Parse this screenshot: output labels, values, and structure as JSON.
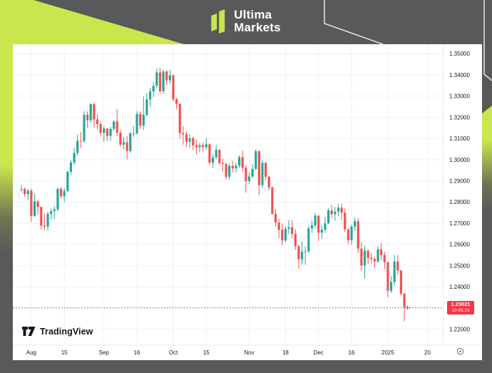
{
  "brand": {
    "line1": "Ultima",
    "line2": "Markets"
  },
  "colors": {
    "frame_bg": "#58595b",
    "accent_lime": "#c9e64d",
    "card_bg": "#ffffff",
    "candle_up": "#26a69a",
    "candle_down": "#ef5350",
    "price_line": "#f23645",
    "grid": "#eef1f6",
    "axis_text": "#131722",
    "attribution_text": "#131722",
    "gear_icon": "#787b86"
  },
  "badge": {
    "price": "1.23021",
    "countdown": "19:45:23"
  },
  "attribution": {
    "label": "TradingView"
  },
  "y_axis_labels": [
    "1.35000",
    "1.34000",
    "1.33000",
    "1.32000",
    "1.31000",
    "1.30000",
    "1.29000",
    "1.28000",
    "1.27000",
    "1.26000",
    "1.25000",
    "1.24000",
    "1.23000",
    "1.22000"
  ],
  "chart_data": {
    "type": "candlestick",
    "title": "",
    "xlabel": "",
    "ylabel": "",
    "legend": false,
    "grid": true,
    "y_range_visible": [
      1.2125,
      1.3545
    ],
    "y_gridline_step": 0.01,
    "price_line_value": 1.23021,
    "x_ticks": [
      {
        "index": 3,
        "label": "Aug"
      },
      {
        "index": 13,
        "label": "15"
      },
      {
        "index": 25,
        "label": "Sep"
      },
      {
        "index": 35,
        "label": "16"
      },
      {
        "index": 46,
        "label": "Oct"
      },
      {
        "index": 56,
        "label": "15"
      },
      {
        "index": 69,
        "label": "Nov"
      },
      {
        "index": 80,
        "label": "18"
      },
      {
        "index": 90,
        "label": "Dec"
      },
      {
        "index": 100,
        "label": "16"
      },
      {
        "index": 111,
        "label": "2025"
      },
      {
        "index": 123,
        "label": "20"
      }
    ],
    "ohlc": [
      [
        1.2858,
        1.288,
        1.2845,
        1.2862
      ],
      [
        1.2862,
        1.287,
        1.2825,
        1.2838
      ],
      [
        1.2838,
        1.2862,
        1.2808,
        1.2854
      ],
      [
        1.2854,
        1.2864,
        1.2706,
        1.2735
      ],
      [
        1.2735,
        1.284,
        1.273,
        1.2803
      ],
      [
        1.2803,
        1.281,
        1.274,
        1.2777
      ],
      [
        1.2777,
        1.278,
        1.2672,
        1.269
      ],
      [
        1.269,
        1.2745,
        1.2667,
        1.2685
      ],
      [
        1.2685,
        1.2755,
        1.2665,
        1.2745
      ],
      [
        1.2745,
        1.277,
        1.2718,
        1.2758
      ],
      [
        1.2758,
        1.278,
        1.272,
        1.2766
      ],
      [
        1.2766,
        1.287,
        1.2758,
        1.2862
      ],
      [
        1.2862,
        1.2872,
        1.2817,
        1.2827
      ],
      [
        1.2827,
        1.2866,
        1.28,
        1.2853
      ],
      [
        1.2853,
        1.2946,
        1.2848,
        1.2943
      ],
      [
        1.2943,
        1.2998,
        1.293,
        1.2987
      ],
      [
        1.2987,
        1.3054,
        1.2975,
        1.3032
      ],
      [
        1.3032,
        1.3119,
        1.3018,
        1.309
      ],
      [
        1.309,
        1.313,
        1.3055,
        1.3088
      ],
      [
        1.3088,
        1.323,
        1.308,
        1.3212
      ],
      [
        1.3212,
        1.3228,
        1.315,
        1.3186
      ],
      [
        1.3186,
        1.3266,
        1.3175,
        1.3262
      ],
      [
        1.3262,
        1.327,
        1.3152,
        1.319
      ],
      [
        1.319,
        1.3214,
        1.3145,
        1.3168
      ],
      [
        1.3168,
        1.318,
        1.311,
        1.3127
      ],
      [
        1.3127,
        1.316,
        1.3087,
        1.3147
      ],
      [
        1.3147,
        1.315,
        1.3088,
        1.3112
      ],
      [
        1.3112,
        1.3155,
        1.309,
        1.3146
      ],
      [
        1.3146,
        1.3186,
        1.3136,
        1.318
      ],
      [
        1.318,
        1.324,
        1.311,
        1.3128
      ],
      [
        1.3128,
        1.3142,
        1.3062,
        1.3071
      ],
      [
        1.3071,
        1.3108,
        1.3049,
        1.3082
      ],
      [
        1.3082,
        1.3111,
        1.3002,
        1.3041
      ],
      [
        1.3041,
        1.313,
        1.3032,
        1.3125
      ],
      [
        1.3125,
        1.3158,
        1.3108,
        1.3124
      ],
      [
        1.3124,
        1.323,
        1.3118,
        1.3216
      ],
      [
        1.3216,
        1.3228,
        1.3145,
        1.3161
      ],
      [
        1.3161,
        1.3298,
        1.314,
        1.3212
      ],
      [
        1.3212,
        1.3314,
        1.3205,
        1.3285
      ],
      [
        1.3285,
        1.334,
        1.325,
        1.3322
      ],
      [
        1.3322,
        1.3366,
        1.3295,
        1.3349
      ],
      [
        1.3349,
        1.343,
        1.3335,
        1.3412
      ],
      [
        1.3412,
        1.3434,
        1.3312,
        1.3323
      ],
      [
        1.3323,
        1.3426,
        1.331,
        1.3416
      ],
      [
        1.3416,
        1.3422,
        1.3355,
        1.3375
      ],
      [
        1.3375,
        1.3424,
        1.3358,
        1.3398
      ],
      [
        1.3398,
        1.3402,
        1.3275,
        1.3285
      ],
      [
        1.3285,
        1.3292,
        1.3238,
        1.3264
      ],
      [
        1.3264,
        1.3268,
        1.31,
        1.3126
      ],
      [
        1.3126,
        1.3158,
        1.307,
        1.312
      ],
      [
        1.312,
        1.3133,
        1.306,
        1.3085
      ],
      [
        1.3085,
        1.312,
        1.3057,
        1.3101
      ],
      [
        1.3101,
        1.3109,
        1.3045,
        1.3068
      ],
      [
        1.3068,
        1.3095,
        1.3025,
        1.3059
      ],
      [
        1.3059,
        1.308,
        1.3035,
        1.3068
      ],
      [
        1.3068,
        1.308,
        1.3038,
        1.3059
      ],
      [
        1.3059,
        1.3102,
        1.3047,
        1.3073
      ],
      [
        1.3073,
        1.3078,
        1.2975,
        1.2986
      ],
      [
        1.2986,
        1.3027,
        1.2962,
        1.3011
      ],
      [
        1.3011,
        1.307,
        1.3001,
        1.3047
      ],
      [
        1.3047,
        1.3048,
        1.2975,
        1.2984
      ],
      [
        1.2984,
        1.3007,
        1.2945,
        1.298
      ],
      [
        1.298,
        1.2985,
        1.2908,
        1.292
      ],
      [
        1.292,
        1.2982,
        1.2905,
        1.2971
      ],
      [
        1.2971,
        1.2995,
        1.294,
        1.2959
      ],
      [
        1.2959,
        1.2987,
        1.294,
        1.2972
      ],
      [
        1.2972,
        1.302,
        1.2962,
        1.3012
      ],
      [
        1.3012,
        1.3044,
        1.294,
        1.2962
      ],
      [
        1.2962,
        1.2975,
        1.2844,
        1.2899
      ],
      [
        1.2899,
        1.294,
        1.2885,
        1.2921
      ],
      [
        1.2921,
        1.298,
        1.2915,
        1.2957
      ],
      [
        1.2957,
        1.3048,
        1.2952,
        1.304
      ],
      [
        1.304,
        1.3042,
        1.2833,
        1.288
      ],
      [
        1.288,
        1.2998,
        1.2868,
        1.2985
      ],
      [
        1.2985,
        1.299,
        1.2903,
        1.292
      ],
      [
        1.292,
        1.2924,
        1.2856,
        1.2869
      ],
      [
        1.2869,
        1.2874,
        1.274,
        1.2745
      ],
      [
        1.2745,
        1.2768,
        1.2686,
        1.2704
      ],
      [
        1.2704,
        1.272,
        1.263,
        1.2669
      ],
      [
        1.2669,
        1.27,
        1.2597,
        1.2619
      ],
      [
        1.2619,
        1.2686,
        1.2612,
        1.2674
      ],
      [
        1.2674,
        1.2714,
        1.2648,
        1.2681
      ],
      [
        1.2681,
        1.2715,
        1.263,
        1.265
      ],
      [
        1.265,
        1.2672,
        1.2575,
        1.2592
      ],
      [
        1.2592,
        1.26,
        1.2487,
        1.253
      ],
      [
        1.253,
        1.2613,
        1.2506,
        1.2566
      ],
      [
        1.2566,
        1.259,
        1.2505,
        1.2568
      ],
      [
        1.2568,
        1.269,
        1.256,
        1.2676
      ],
      [
        1.2676,
        1.2712,
        1.2655,
        1.269
      ],
      [
        1.269,
        1.2749,
        1.2675,
        1.2736
      ],
      [
        1.2736,
        1.2738,
        1.2617,
        1.2656
      ],
      [
        1.2656,
        1.269,
        1.2628,
        1.267
      ],
      [
        1.267,
        1.273,
        1.2655,
        1.27
      ],
      [
        1.27,
        1.2772,
        1.2695,
        1.2761
      ],
      [
        1.2761,
        1.2788,
        1.2725,
        1.2743
      ],
      [
        1.2743,
        1.2778,
        1.2713,
        1.2755
      ],
      [
        1.2755,
        1.279,
        1.2733,
        1.2774
      ],
      [
        1.2774,
        1.2793,
        1.2715,
        1.275
      ],
      [
        1.275,
        1.277,
        1.266,
        1.2671
      ],
      [
        1.2671,
        1.2676,
        1.2601,
        1.262
      ],
      [
        1.262,
        1.2694,
        1.2598,
        1.2685
      ],
      [
        1.2685,
        1.2728,
        1.2665,
        1.271
      ],
      [
        1.271,
        1.2723,
        1.256,
        1.2581
      ],
      [
        1.2581,
        1.261,
        1.2475,
        1.2501
      ],
      [
        1.2501,
        1.2595,
        1.244,
        1.2571
      ],
      [
        1.2571,
        1.2578,
        1.2508,
        1.2537
      ],
      [
        1.2537,
        1.256,
        1.251,
        1.2532
      ],
      [
        1.2532,
        1.2543,
        1.249,
        1.252
      ],
      [
        1.252,
        1.2592,
        1.2513,
        1.2577
      ],
      [
        1.2577,
        1.2608,
        1.2525,
        1.255
      ],
      [
        1.255,
        1.2566,
        1.2485,
        1.2516
      ],
      [
        1.2516,
        1.252,
        1.2352,
        1.2382
      ],
      [
        1.2382,
        1.245,
        1.2372,
        1.2423
      ],
      [
        1.2423,
        1.255,
        1.2405,
        1.252
      ],
      [
        1.252,
        1.255,
        1.2458,
        1.2477
      ],
      [
        1.2477,
        1.2482,
        1.2358,
        1.2368
      ],
      [
        1.2368,
        1.2372,
        1.2238,
        1.23021
      ]
    ]
  }
}
